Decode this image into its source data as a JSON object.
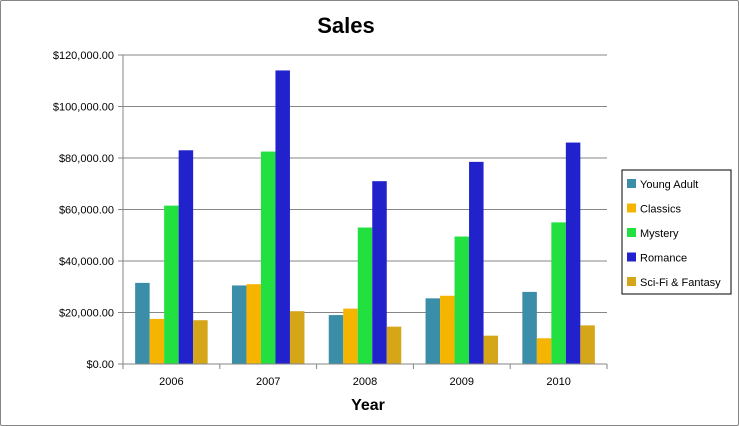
{
  "chart_data": {
    "type": "bar",
    "title": "Sales",
    "xlabel": "Year",
    "ylabel": "",
    "categories": [
      "2006",
      "2007",
      "2008",
      "2009",
      "2010"
    ],
    "ylim": [
      0,
      120000
    ],
    "yticks": [
      {
        "value": 0,
        "label": "$0.00"
      },
      {
        "value": 20000,
        "label": "$20,000.00"
      },
      {
        "value": 40000,
        "label": "$40,000.00"
      },
      {
        "value": 60000,
        "label": "$60,000.00"
      },
      {
        "value": 80000,
        "label": "$80,000.00"
      },
      {
        "value": 100000,
        "label": "$100,000.00"
      },
      {
        "value": 120000,
        "label": "$120,000.00"
      }
    ],
    "grid": true,
    "legend_position": "right",
    "series": [
      {
        "name": "Young Adult",
        "color": "#3a8ea8",
        "values": [
          31500,
          30500,
          19000,
          25500,
          28000
        ]
      },
      {
        "name": "Classics",
        "color": "#f4b400",
        "values": [
          17500,
          31000,
          21500,
          26500,
          10000
        ]
      },
      {
        "name": "Mystery",
        "color": "#22e040",
        "values": [
          61500,
          82500,
          53000,
          49500,
          55000
        ]
      },
      {
        "name": "Romance",
        "color": "#2222cc",
        "values": [
          83000,
          114000,
          71000,
          78500,
          86000
        ]
      },
      {
        "name": "Sci-Fi & Fantasy",
        "color": "#d4a618",
        "values": [
          17000,
          20500,
          14500,
          11000,
          15000
        ]
      }
    ]
  }
}
